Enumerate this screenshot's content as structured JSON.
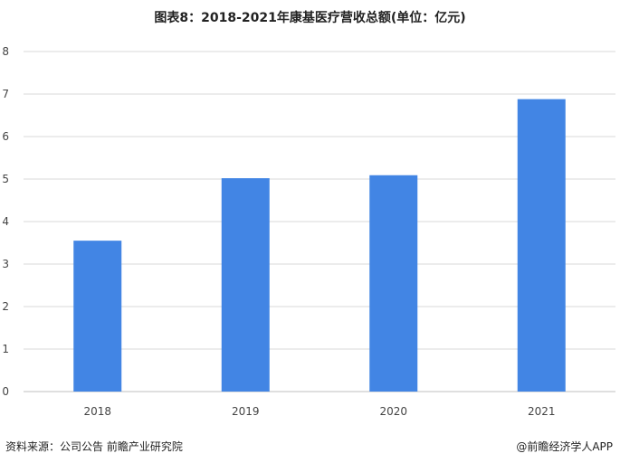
{
  "chart_data": {
    "type": "bar",
    "title": "图表8：2018-2021年康基医疗营收总额(单位：亿元)",
    "categories": [
      "2018",
      "2019",
      "2020",
      "2021"
    ],
    "values": [
      3.55,
      5.02,
      5.09,
      6.88
    ],
    "ylim": [
      0,
      8
    ],
    "yticks": [
      0,
      1,
      2,
      3,
      4,
      5,
      6,
      7,
      8
    ],
    "grid": true,
    "bar_color": "#4285e4",
    "xlabel": "",
    "ylabel": ""
  },
  "footer": {
    "source": "资料来源：公司公告 前瞻产业研究院",
    "credit": "@前瞻经济学人APP"
  }
}
